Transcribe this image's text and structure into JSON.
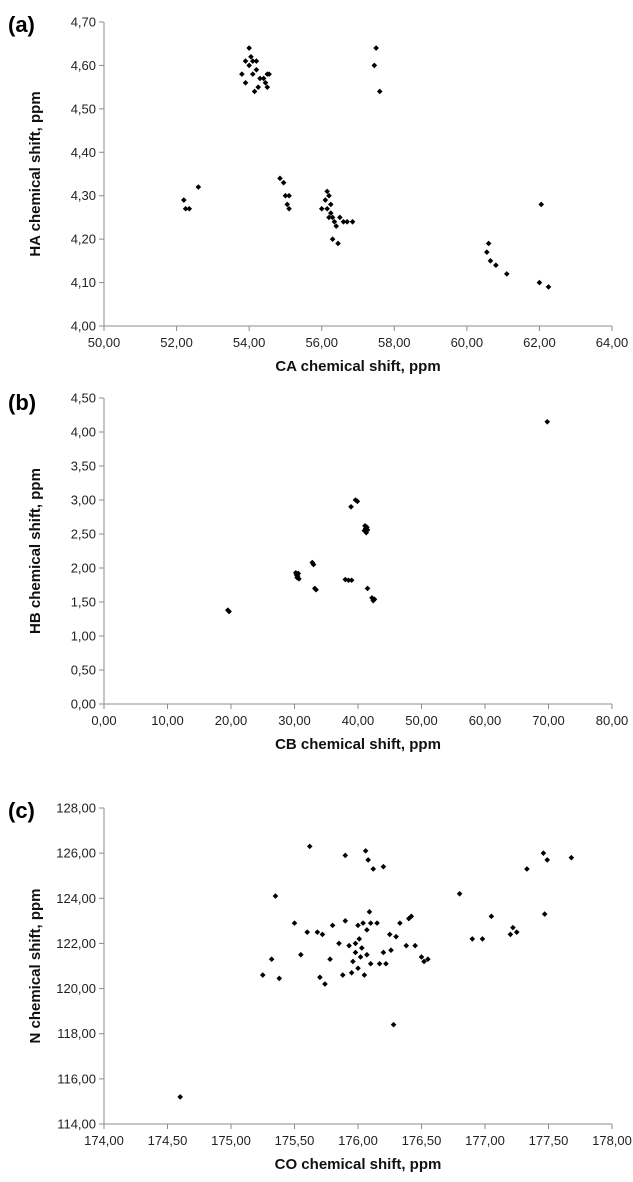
{
  "chart_data": [
    {
      "type": "scatter",
      "panel_label": "(a)",
      "xlabel": "CA chemical shift, ppm",
      "ylabel": "HA chemical shift, ppm",
      "xlim": [
        50,
        64
      ],
      "ylim": [
        4.0,
        4.7
      ],
      "xticks": [
        "50,00",
        "52,00",
        "54,00",
        "56,00",
        "58,00",
        "60,00",
        "62,00",
        "64,00"
      ],
      "yticks": [
        "4,00",
        "4,10",
        "4,20",
        "4,30",
        "4,40",
        "4,50",
        "4,60",
        "4,70"
      ],
      "grid": false,
      "legend": "none",
      "marker": "diamond",
      "color": "#000000",
      "points": [
        [
          53.8,
          4.58
        ],
        [
          53.9,
          4.61
        ],
        [
          53.9,
          4.56
        ],
        [
          54.0,
          4.64
        ],
        [
          54.0,
          4.6
        ],
        [
          54.05,
          4.62
        ],
        [
          54.1,
          4.58
        ],
        [
          54.1,
          4.61
        ],
        [
          54.15,
          4.54
        ],
        [
          54.2,
          4.59
        ],
        [
          54.2,
          4.61
        ],
        [
          54.25,
          4.55
        ],
        [
          54.3,
          4.57
        ],
        [
          54.4,
          4.57
        ],
        [
          54.45,
          4.56
        ],
        [
          54.5,
          4.55
        ],
        [
          54.5,
          4.58
        ],
        [
          54.55,
          4.58
        ],
        [
          57.5,
          4.64
        ],
        [
          57.45,
          4.6
        ],
        [
          57.6,
          4.54
        ],
        [
          52.2,
          4.29
        ],
        [
          52.25,
          4.27
        ],
        [
          52.35,
          4.27
        ],
        [
          52.6,
          4.32
        ],
        [
          54.85,
          4.34
        ],
        [
          54.95,
          4.33
        ],
        [
          55.0,
          4.3
        ],
        [
          55.05,
          4.28
        ],
        [
          55.1,
          4.27
        ],
        [
          55.1,
          4.3
        ],
        [
          56.0,
          4.27
        ],
        [
          56.1,
          4.29
        ],
        [
          56.15,
          4.31
        ],
        [
          56.15,
          4.27
        ],
        [
          56.2,
          4.3
        ],
        [
          56.2,
          4.25
        ],
        [
          56.25,
          4.26
        ],
        [
          56.25,
          4.28
        ],
        [
          56.3,
          4.25
        ],
        [
          56.3,
          4.2
        ],
        [
          56.35,
          4.24
        ],
        [
          56.4,
          4.23
        ],
        [
          56.45,
          4.19
        ],
        [
          56.5,
          4.25
        ],
        [
          56.6,
          4.24
        ],
        [
          56.7,
          4.24
        ],
        [
          56.85,
          4.24
        ],
        [
          60.55,
          4.17
        ],
        [
          60.6,
          4.19
        ],
        [
          60.65,
          4.15
        ],
        [
          60.8,
          4.14
        ],
        [
          61.1,
          4.12
        ],
        [
          62.0,
          4.1
        ],
        [
          62.05,
          4.28
        ],
        [
          62.25,
          4.09
        ]
      ]
    },
    {
      "type": "scatter",
      "panel_label": "(b)",
      "xlabel": "CB chemical shift, ppm",
      "ylabel": "HB chemical shift, ppm",
      "xlim": [
        0,
        80
      ],
      "ylim": [
        0,
        4.5
      ],
      "xticks": [
        "0,00",
        "10,00",
        "20,00",
        "30,00",
        "40,00",
        "50,00",
        "60,00",
        "70,00",
        "80,00"
      ],
      "yticks": [
        "0,00",
        "0,50",
        "1,00",
        "1,50",
        "2,00",
        "2,50",
        "3,00",
        "3,50",
        "4,00",
        "4,50"
      ],
      "grid": false,
      "legend": "none",
      "marker": "diamond",
      "color": "#000000",
      "points": [
        [
          19.5,
          1.38
        ],
        [
          19.7,
          1.36
        ],
        [
          30.2,
          1.93
        ],
        [
          30.3,
          1.9
        ],
        [
          30.4,
          1.86
        ],
        [
          30.5,
          1.88
        ],
        [
          30.6,
          1.92
        ],
        [
          30.7,
          1.84
        ],
        [
          32.8,
          2.08
        ],
        [
          33.0,
          2.05
        ],
        [
          33.2,
          1.7
        ],
        [
          33.4,
          1.68
        ],
        [
          38.0,
          1.83
        ],
        [
          38.5,
          1.82
        ],
        [
          39.0,
          1.82
        ],
        [
          38.9,
          2.9
        ],
        [
          39.6,
          3.0
        ],
        [
          39.9,
          2.98
        ],
        [
          41.0,
          2.55
        ],
        [
          41.1,
          2.62
        ],
        [
          41.2,
          2.58
        ],
        [
          41.3,
          2.52
        ],
        [
          41.4,
          2.6
        ],
        [
          41.5,
          2.56
        ],
        [
          41.5,
          1.7
        ],
        [
          42.2,
          1.56
        ],
        [
          42.4,
          1.52
        ],
        [
          42.6,
          1.54
        ],
        [
          69.8,
          4.15
        ]
      ]
    },
    {
      "type": "scatter",
      "panel_label": "(c)",
      "xlabel": "CO chemical shift, ppm",
      "ylabel": "N chemical shift, ppm",
      "xlim": [
        174,
        178
      ],
      "ylim": [
        114,
        128
      ],
      "xticks": [
        "174,00",
        "174,50",
        "175,00",
        "175,50",
        "176,00",
        "176,50",
        "177,00",
        "177,50",
        "178,00"
      ],
      "yticks": [
        "114,00",
        "116,00",
        "118,00",
        "120,00",
        "122,00",
        "124,00",
        "126,00",
        "128,00"
      ],
      "grid": false,
      "legend": "none",
      "marker": "diamond",
      "color": "#000000",
      "points": [
        [
          174.6,
          115.2
        ],
        [
          175.25,
          120.6
        ],
        [
          175.32,
          121.3
        ],
        [
          175.35,
          124.1
        ],
        [
          175.38,
          120.45
        ],
        [
          175.5,
          122.9
        ],
        [
          175.55,
          121.5
        ],
        [
          175.6,
          122.5
        ],
        [
          175.62,
          126.3
        ],
        [
          175.68,
          122.5
        ],
        [
          175.7,
          120.5
        ],
        [
          175.72,
          122.4
        ],
        [
          175.74,
          120.2
        ],
        [
          175.78,
          121.3
        ],
        [
          175.8,
          122.8
        ],
        [
          175.85,
          122.0
        ],
        [
          175.88,
          120.6
        ],
        [
          175.9,
          125.9
        ],
        [
          175.9,
          123.0
        ],
        [
          175.93,
          121.9
        ],
        [
          175.95,
          120.7
        ],
        [
          175.96,
          121.2
        ],
        [
          175.98,
          121.6
        ],
        [
          175.98,
          122.0
        ],
        [
          176.0,
          122.8
        ],
        [
          176.0,
          120.9
        ],
        [
          176.01,
          122.2
        ],
        [
          176.02,
          121.4
        ],
        [
          176.03,
          121.8
        ],
        [
          176.04,
          122.9
        ],
        [
          176.05,
          120.6
        ],
        [
          176.06,
          126.1
        ],
        [
          176.07,
          121.5
        ],
        [
          176.07,
          122.6
        ],
        [
          176.08,
          125.7
        ],
        [
          176.09,
          123.4
        ],
        [
          176.1,
          122.9
        ],
        [
          176.1,
          121.1
        ],
        [
          176.12,
          125.3
        ],
        [
          176.15,
          122.9
        ],
        [
          176.17,
          121.1
        ],
        [
          176.2,
          125.4
        ],
        [
          176.2,
          121.6
        ],
        [
          176.22,
          121.1
        ],
        [
          176.25,
          122.4
        ],
        [
          176.26,
          121.7
        ],
        [
          176.28,
          118.4
        ],
        [
          176.3,
          122.3
        ],
        [
          176.33,
          122.9
        ],
        [
          176.38,
          121.9
        ],
        [
          176.4,
          123.1
        ],
        [
          176.42,
          123.2
        ],
        [
          176.45,
          121.9
        ],
        [
          176.5,
          121.4
        ],
        [
          176.52,
          121.2
        ],
        [
          176.55,
          121.3
        ],
        [
          176.8,
          124.2
        ],
        [
          176.9,
          122.2
        ],
        [
          176.98,
          122.2
        ],
        [
          177.05,
          123.2
        ],
        [
          177.2,
          122.4
        ],
        [
          177.22,
          122.7
        ],
        [
          177.25,
          122.5
        ],
        [
          177.33,
          125.3
        ],
        [
          177.46,
          126.0
        ],
        [
          177.47,
          123.3
        ],
        [
          177.49,
          125.7
        ],
        [
          177.68,
          125.8
        ]
      ]
    }
  ]
}
